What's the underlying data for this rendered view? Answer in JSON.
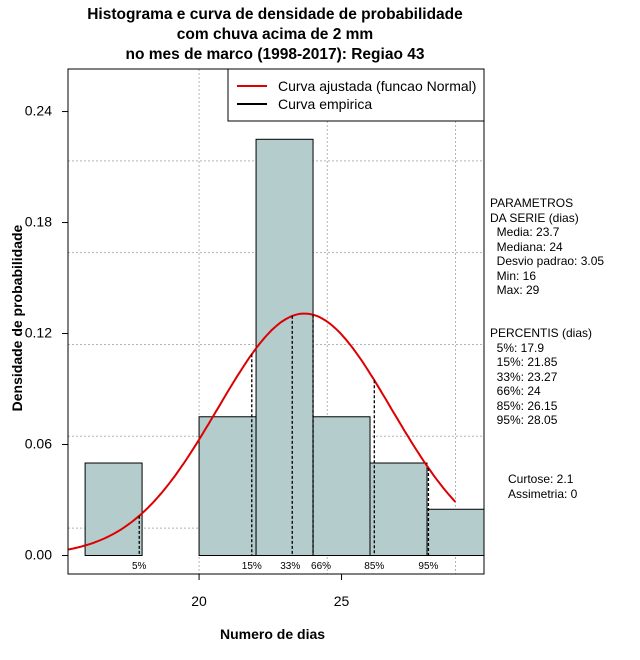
{
  "chart_data": {
    "type": "histogram",
    "title_lines": [
      "Histograma e curva de densidade de probabilidade",
      "com chuva acima de 2 mm",
      "no mes de marco (1998-2017): Regiao 43"
    ],
    "xlabel": "Numero de dias",
    "ylabel": "Densidade de probabilidade",
    "xlim": [
      15.4,
      30.0
    ],
    "ylim": [
      -0.01,
      0.263
    ],
    "x_ticks": [
      20,
      25
    ],
    "y_ticks": [
      0.0,
      0.06,
      0.12,
      0.18,
      0.24
    ],
    "y_tick_labels": [
      "0.00",
      "0.06",
      "0.12",
      "0.18",
      "0.24"
    ],
    "bars": [
      {
        "x0": 16,
        "x1": 18,
        "density": 0.05
      },
      {
        "x0": 18,
        "x1": 20,
        "density": 0.0
      },
      {
        "x0": 20,
        "x1": 22,
        "density": 0.075
      },
      {
        "x0": 22,
        "x1": 24,
        "density": 0.225
      },
      {
        "x0": 24,
        "x1": 26,
        "density": 0.075
      },
      {
        "x0": 26,
        "x1": 28,
        "density": 0.05
      },
      {
        "x0": 28,
        "x1": 30,
        "density": 0.025
      }
    ],
    "normal_curve": {
      "mean": 23.7,
      "sd": 3.05,
      "x_range": [
        15.4,
        29.0
      ],
      "color": "#dd0000"
    },
    "percentile_lines": [
      {
        "label": "5%",
        "x": 17.9
      },
      {
        "label": "15%",
        "x": 21.85
      },
      {
        "label": "33%",
        "x": 23.27
      },
      {
        "label": "66%",
        "x": 24
      },
      {
        "label": "85%",
        "x": 26.15
      },
      {
        "label": "95%",
        "x": 28.05
      }
    ],
    "legend": {
      "position": "top-right",
      "entries": [
        {
          "label": "Curva ajustada (funcao Normal)",
          "color": "#dd0000"
        },
        {
          "label": "Curva empirica",
          "color": "#000000"
        }
      ]
    },
    "bar_fill": "#b5cccc",
    "grid": true
  },
  "side_panel": {
    "parametros_lines": [
      "PARAMETROS",
      "DA SERIE (dias)",
      "  Media: 23.7",
      "  Mediana: 24",
      "  Desvio padrao: 3.05",
      "  Min: 16",
      "  Max: 29"
    ],
    "percentis_lines": [
      "PERCENTIS (dias)",
      "  5%: 17.9",
      "  15%: 21.85",
      "  33%: 23.27",
      "  66%: 24",
      "  85%: 26.15",
      "  95%: 28.05"
    ],
    "stats_lines": [
      "Curtose: 2.1",
      "Assimetria: 0"
    ]
  }
}
